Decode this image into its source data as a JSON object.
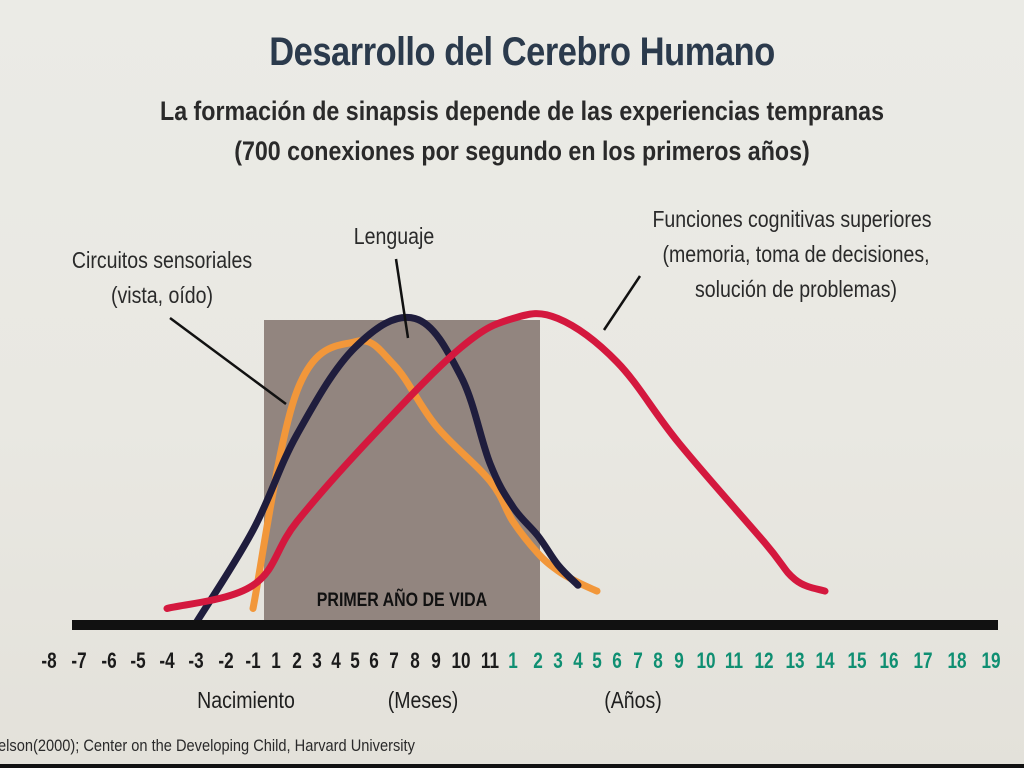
{
  "chart_data": {
    "type": "line",
    "title": "Desarrollo del Cerebro Humano",
    "subtitle_lines": [
      "La formación de sinapsis depende de las experiencias tempranas",
      "(700 conexiones por segundo en los primeros años)"
    ],
    "x_ticks_months": [
      "-8",
      "-7",
      "-6",
      "-5",
      "-4",
      "-3",
      "-2",
      "-1",
      "1",
      "2",
      "3",
      "4",
      "5",
      "6",
      "7",
      "8",
      "9",
      "10",
      "11"
    ],
    "x_ticks_years": [
      "1",
      "2",
      "3",
      "4",
      "5",
      "6",
      "7",
      "8",
      "9",
      "10",
      "11",
      "12",
      "13",
      "14",
      "15",
      "16",
      "17",
      "18",
      "19"
    ],
    "x_labels": {
      "birth": "Nacimiento",
      "months": "(Meses)",
      "years": "(Años)"
    },
    "highlight_band_label": "PRIMER AÑO DE VIDA",
    "series": [
      {
        "name": "Circuitos sensoriales (vista, oído)",
        "label_lines": [
          "Circuitos sensoriales",
          "(vista, oído)"
        ],
        "color": "#f2973a",
        "points": [
          [
            -1,
            0.05
          ],
          [
            2,
            0.8
          ],
          [
            5,
            0.97
          ],
          [
            7,
            0.89
          ],
          [
            9,
            0.68
          ],
          [
            11,
            0.49
          ],
          [
            1,
            0.35
          ],
          [
            2,
            0.24
          ],
          [
            3,
            0.18
          ],
          [
            4,
            0.14
          ],
          [
            5,
            0.11
          ]
        ]
      },
      {
        "name": "Lenguaje",
        "label_lines": [
          "Lenguaje"
        ],
        "color": "#1f1d3d",
        "points": [
          [
            -3,
            0.0
          ],
          [
            -1,
            0.32
          ],
          [
            2,
            0.65
          ],
          [
            5,
            0.95
          ],
          [
            8,
            1.05
          ],
          [
            10,
            0.85
          ],
          [
            11,
            0.55
          ],
          [
            1,
            0.4
          ],
          [
            2,
            0.3
          ],
          [
            3,
            0.2
          ],
          [
            4,
            0.13
          ]
        ]
      },
      {
        "name": "Funciones cognitivas superiores (memoria, toma de decisiones, solución de problemas)",
        "label_lines": [
          "Funciones cognitivas superiores",
          "(memoria, toma de decisiones,",
          "solución de problemas)"
        ],
        "color": "#d4183e",
        "points": [
          [
            -4,
            0.05
          ],
          [
            -1,
            0.13
          ],
          [
            2,
            0.35
          ],
          [
            6,
            0.65
          ],
          [
            10,
            0.95
          ],
          [
            1,
            1.05
          ],
          [
            3,
            1.05
          ],
          [
            6,
            0.9
          ],
          [
            9,
            0.62
          ],
          [
            12,
            0.28
          ],
          [
            13,
            0.15
          ],
          [
            14,
            0.11
          ]
        ]
      }
    ],
    "colors": {
      "months_ticks": "#1b1b1b",
      "years_ticks": "#0f8f72",
      "band": "#8d7f79",
      "title": "#2b3a4c",
      "axis": "#111111"
    },
    "grid": false
  },
  "footer": {
    "source": "elson(2000); Center on the Developing Child, Harvard University"
  }
}
